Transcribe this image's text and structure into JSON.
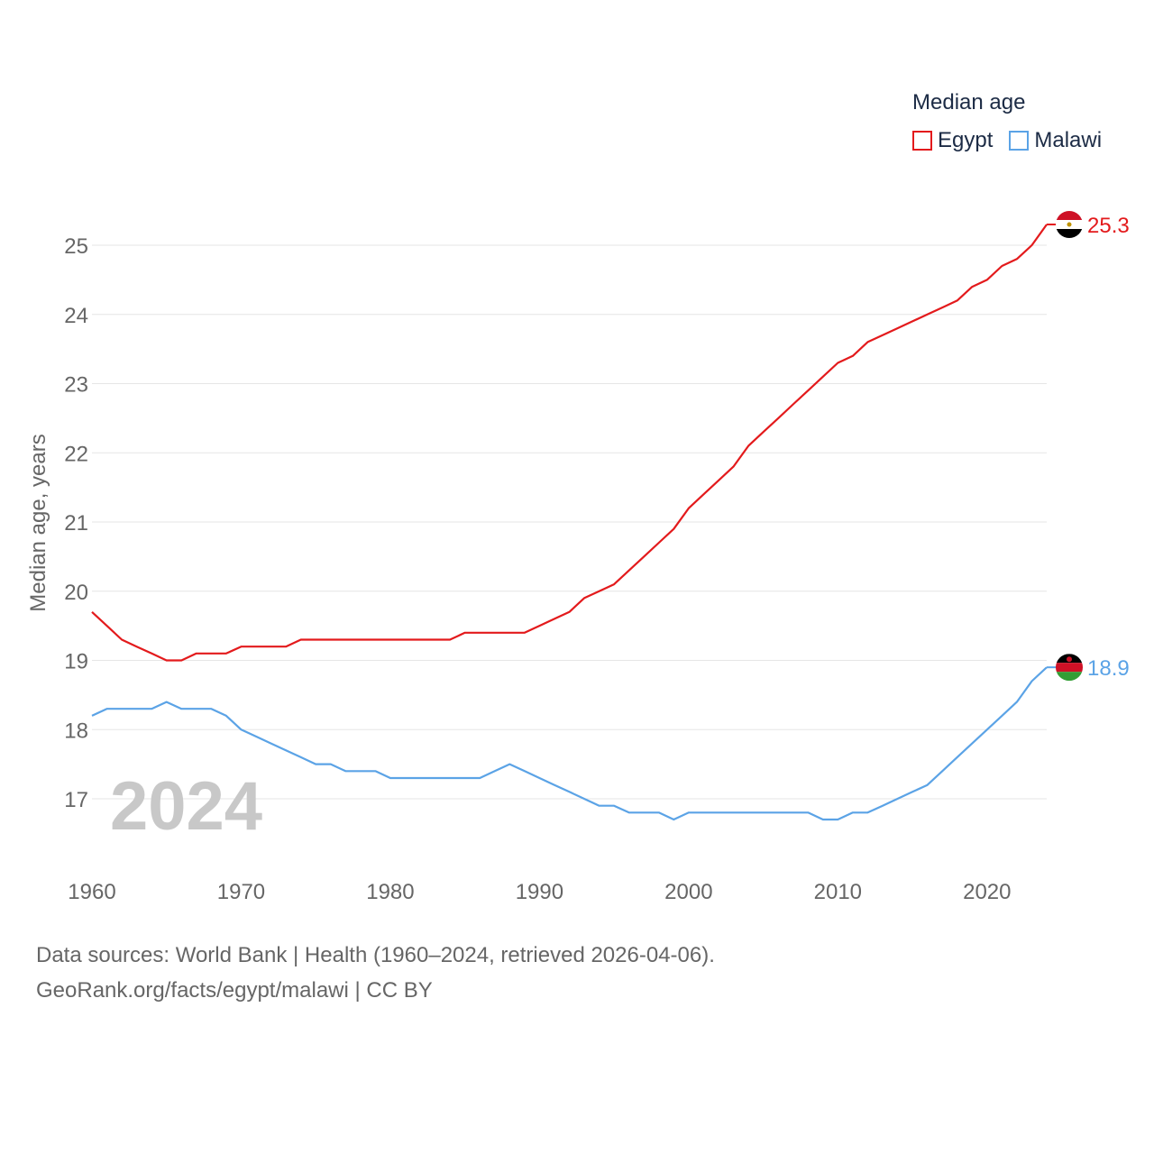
{
  "legend": {
    "title": "Median age",
    "items": [
      {
        "label": "Egypt",
        "color": "#e31a1c"
      },
      {
        "label": "Malawi",
        "color": "#5ba3e6"
      }
    ]
  },
  "footer": {
    "line1": "Data sources: World Bank | Health (1960–2024, retrieved 2026-04-06).",
    "line2": "GeoRank.org/facts/egypt/malawi | CC BY"
  },
  "chart_data": {
    "type": "line",
    "title": "Median age",
    "xlabel": "",
    "ylabel": "Median age, years",
    "xlim": [
      1960,
      2024
    ],
    "ylim": [
      16.1,
      25.3
    ],
    "x_ticks": [
      1960,
      1970,
      1980,
      1990,
      2000,
      2010,
      2020
    ],
    "y_ticks": [
      17,
      18,
      19,
      20,
      21,
      22,
      23,
      24,
      25
    ],
    "current_year": "2024",
    "grid": true,
    "x": [
      1960,
      1961,
      1962,
      1963,
      1964,
      1965,
      1966,
      1967,
      1968,
      1969,
      1970,
      1971,
      1972,
      1973,
      1974,
      1975,
      1976,
      1977,
      1978,
      1979,
      1980,
      1981,
      1982,
      1983,
      1984,
      1985,
      1986,
      1987,
      1988,
      1989,
      1990,
      1991,
      1992,
      1993,
      1994,
      1995,
      1996,
      1997,
      1998,
      1999,
      2000,
      2001,
      2002,
      2003,
      2004,
      2005,
      2006,
      2007,
      2008,
      2009,
      2010,
      2011,
      2012,
      2013,
      2014,
      2015,
      2016,
      2017,
      2018,
      2019,
      2020,
      2021,
      2022,
      2023,
      2024
    ],
    "series": [
      {
        "name": "Egypt",
        "color": "#e31a1c",
        "end_label": "25.3",
        "values": [
          19.7,
          19.5,
          19.3,
          19.2,
          19.1,
          19.0,
          19.0,
          19.1,
          19.1,
          19.1,
          19.2,
          19.2,
          19.2,
          19.2,
          19.3,
          19.3,
          19.3,
          19.3,
          19.3,
          19.3,
          19.3,
          19.3,
          19.3,
          19.3,
          19.3,
          19.4,
          19.4,
          19.4,
          19.4,
          19.4,
          19.5,
          19.6,
          19.7,
          19.9,
          20.0,
          20.1,
          20.3,
          20.5,
          20.7,
          20.9,
          21.2,
          21.4,
          21.6,
          21.8,
          22.1,
          22.3,
          22.5,
          22.7,
          22.9,
          23.1,
          23.3,
          23.4,
          23.6,
          23.7,
          23.8,
          23.9,
          24.0,
          24.1,
          24.2,
          24.4,
          24.5,
          24.7,
          24.8,
          25.0,
          25.3
        ]
      },
      {
        "name": "Malawi",
        "color": "#5ba3e6",
        "end_label": "18.9",
        "values": [
          18.2,
          18.3,
          18.3,
          18.3,
          18.3,
          18.4,
          18.3,
          18.3,
          18.3,
          18.2,
          18.0,
          17.9,
          17.8,
          17.7,
          17.6,
          17.5,
          17.5,
          17.4,
          17.4,
          17.4,
          17.3,
          17.3,
          17.3,
          17.3,
          17.3,
          17.3,
          17.3,
          17.4,
          17.5,
          17.4,
          17.3,
          17.2,
          17.1,
          17.0,
          16.9,
          16.9,
          16.8,
          16.8,
          16.8,
          16.7,
          16.8,
          16.8,
          16.8,
          16.8,
          16.8,
          16.8,
          16.8,
          16.8,
          16.8,
          16.7,
          16.7,
          16.8,
          16.8,
          16.9,
          17.0,
          17.1,
          17.2,
          17.4,
          17.6,
          17.8,
          18.0,
          18.2,
          18.4,
          18.7,
          18.9
        ]
      }
    ]
  }
}
